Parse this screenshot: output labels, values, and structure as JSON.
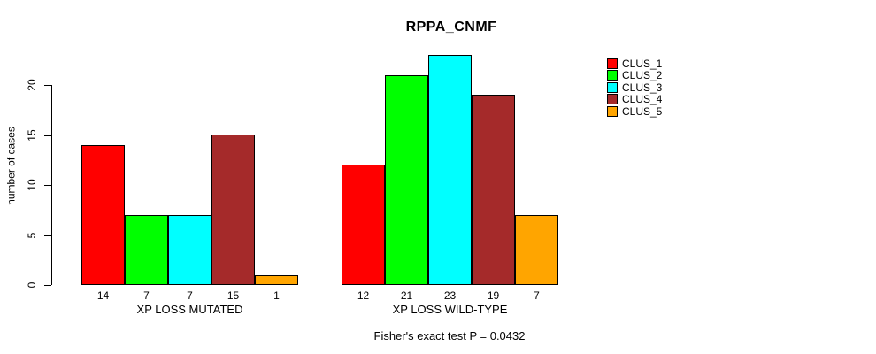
{
  "title": "RPPA_CNMF",
  "chart_data": {
    "type": "bar",
    "title": "RPPA_CNMF",
    "xlabel": "",
    "ylabel": "number of cases",
    "ylim": [
      0,
      23
    ],
    "yticks": [
      0,
      5,
      10,
      15,
      20
    ],
    "grid": false,
    "legend_position": "right",
    "categories": [
      "XP LOSS MUTATED",
      "XP LOSS WILD-TYPE"
    ],
    "series": [
      {
        "name": "CLUS_1",
        "color": "#FF0000",
        "values": [
          14,
          12
        ]
      },
      {
        "name": "CLUS_2",
        "color": "#00FF00",
        "values": [
          7,
          21
        ]
      },
      {
        "name": "CLUS_3",
        "color": "#00FFFF",
        "values": [
          7,
          23
        ]
      },
      {
        "name": "CLUS_4",
        "color": "#A52A2A",
        "values": [
          15,
          19
        ]
      },
      {
        "name": "CLUS_5",
        "color": "#FFA500",
        "values": [
          1,
          7
        ]
      }
    ],
    "bar_value_labels": [
      [
        14,
        7,
        7,
        15,
        1
      ],
      [
        12,
        21,
        23,
        19,
        7
      ]
    ],
    "annotation": "Fisher's exact test P = 0.0432"
  },
  "legend": {
    "items": [
      {
        "label": "CLUS_1",
        "color": "#FF0000"
      },
      {
        "label": "CLUS_2",
        "color": "#00FF00"
      },
      {
        "label": "CLUS_3",
        "color": "#00FFFF"
      },
      {
        "label": "CLUS_4",
        "color": "#A52A2A"
      },
      {
        "label": "CLUS_5",
        "color": "#FFA500"
      }
    ]
  }
}
